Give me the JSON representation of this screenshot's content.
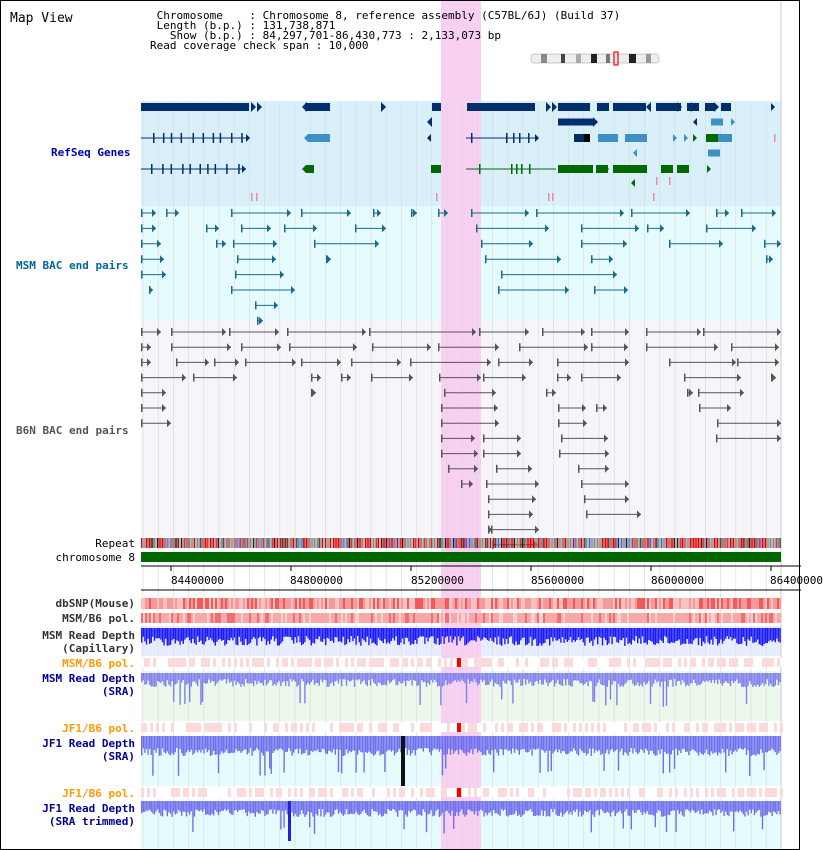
{
  "page": {
    "title": "Map View"
  },
  "assembly": {
    "line1": " Chromosome    : Chromosome 8, reference assembly (C57BL/6J) (Build 37)",
    "line2": " Length (b.p.) : 131,738,871",
    "line3": "   Show (b.p.) : 84,297,701-86,430,773 : 2,133,073 bp",
    "line4": "Read coverage check span : 10,000"
  },
  "tracks": {
    "refseq": {
      "label": "RefSeq Genes",
      "color": "#0000aa"
    },
    "msm_bac": {
      "label": "MSM BAC end pairs",
      "color": "#006699"
    },
    "b6n_bac": {
      "label": "B6N BAC end pairs",
      "color": "#555555"
    },
    "repeat": {
      "label": "Repeat"
    },
    "chromosome": {
      "label": "chromosome 8"
    },
    "dbsnp": {
      "label": "dbSNP(Mouse)"
    },
    "msm_b6_pol_1": {
      "label": "MSM/B6 pol."
    },
    "msm_depth_cap": {
      "label": "MSM Read Depth\n(Capillary)"
    },
    "msm_b6_pol_2": {
      "label": "MSM/B6 pol."
    },
    "msm_depth_sra": {
      "label": "MSM Read Depth\n(SRA)"
    },
    "jf1_b6_pol_1": {
      "label": "JF1/B6 pol."
    },
    "jf1_depth_sra": {
      "label": "JF1 Read Depth\n(SRA)"
    },
    "jf1_b6_pol_2": {
      "label": "JF1/B6 pol."
    },
    "jf1_depth_trim": {
      "label": "JF1 Read Depth\n(SRA trimmed)"
    }
  },
  "axis": {
    "ticks": [
      "84400000",
      "84800000",
      "85200000",
      "85600000",
      "86000000",
      "86400000"
    ]
  },
  "colors": {
    "highlight": "#f7d0f2",
    "refseq_bg": "#d9f0fb",
    "msm_bg": "#e6fbfd",
    "gene_dark": "#002f6c",
    "gene_mid": "#3e8fc2",
    "gene_green": "#006a00",
    "bac_msm": "#1a6a8a",
    "bac_b6n": "#555555",
    "chrom_green": "#006600",
    "snp_pink": "#f07f7f",
    "depth_blue": "#1a1aff",
    "depth_light": "#7f7fff",
    "pol_orange": "#ff9900",
    "sra_blue": "#000099"
  }
}
